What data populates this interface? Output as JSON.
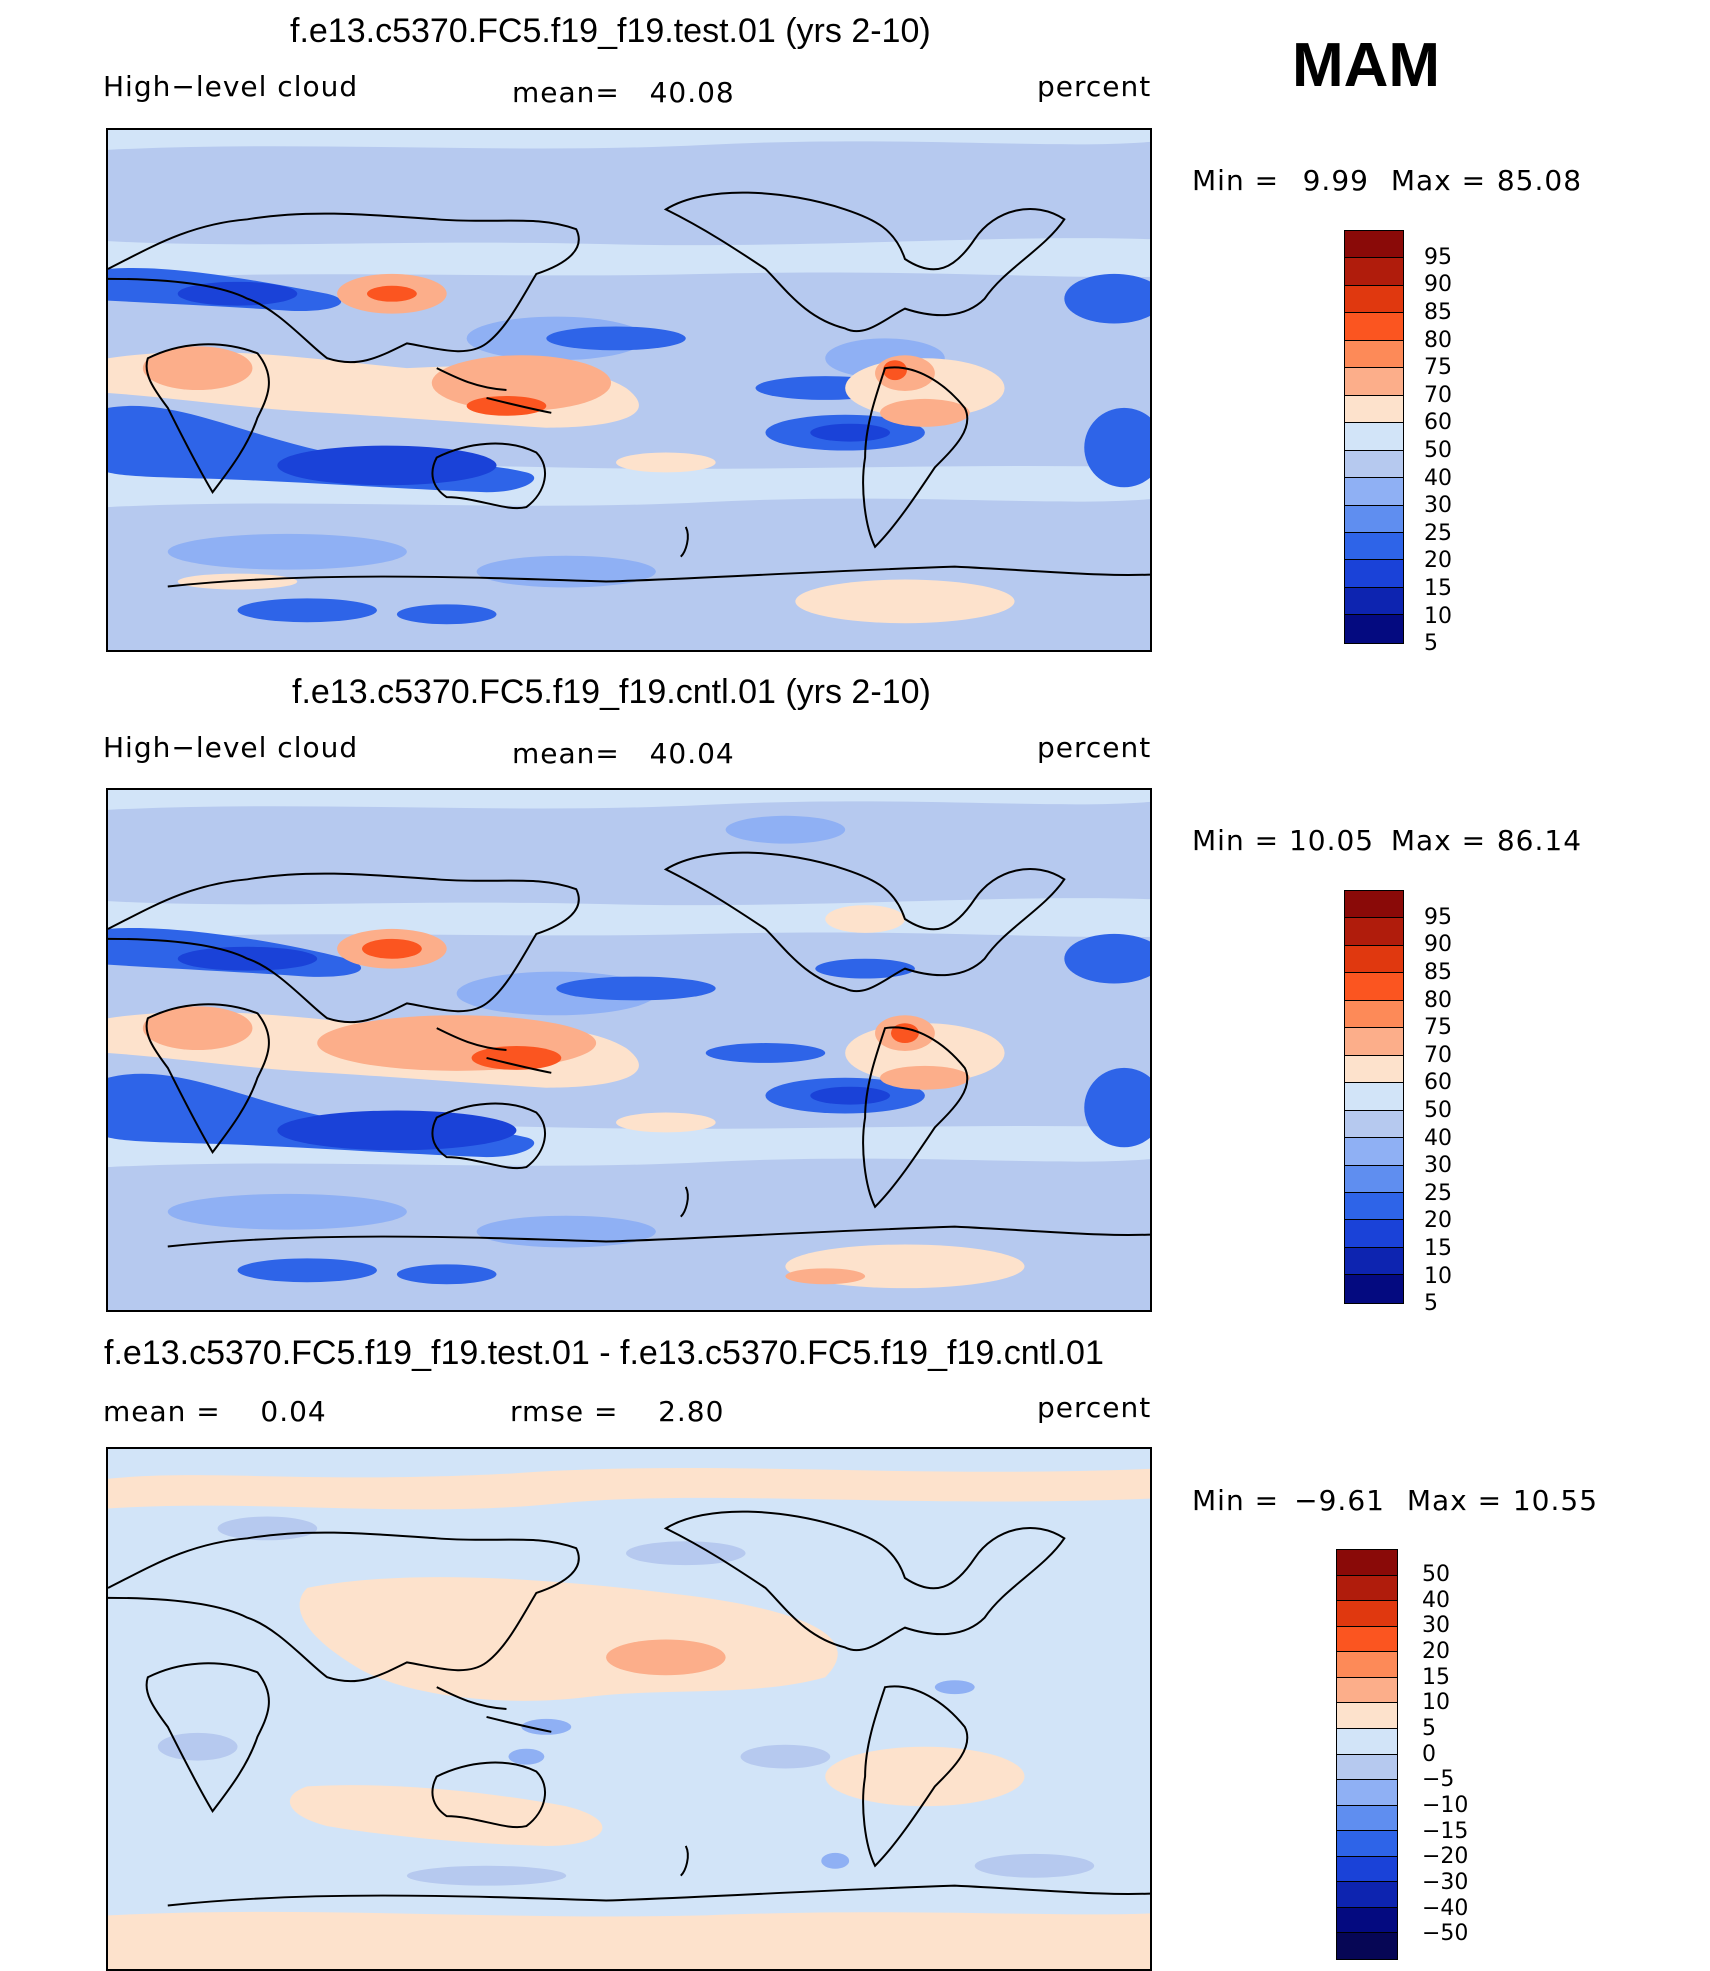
{
  "season": "MAM",
  "panels": [
    {
      "title": "f.e13.c5370.FC5.f19_f19.test.01 (yrs 2-10)",
      "left_label": "High−level cloud",
      "center_label": "mean=",
      "center_value": "40.08",
      "right_label": "percent",
      "min_label": "Min  =",
      "min_value": "9.99",
      "max_label": "Max  =",
      "max_value": "85.08",
      "colorbar_levels": [
        "95",
        "90",
        "85",
        "80",
        "75",
        "70",
        "60",
        "50",
        "40",
        "30",
        "25",
        "20",
        "15",
        "10",
        "5"
      ]
    },
    {
      "title": "f.e13.c5370.FC5.f19_f19.cntl.01 (yrs 2-10)",
      "left_label": "High−level cloud",
      "center_label": "mean=",
      "center_value": "40.04",
      "right_label": "percent",
      "min_label": "Min  =",
      "min_value": "10.05",
      "max_label": "Max  =",
      "max_value": "86.14",
      "colorbar_levels": [
        "95",
        "90",
        "85",
        "80",
        "75",
        "70",
        "60",
        "50",
        "40",
        "30",
        "25",
        "20",
        "15",
        "10",
        "5"
      ]
    },
    {
      "title": "f.e13.c5370.FC5.f19_f19.test.01 - f.e13.c5370.FC5.f19_f19.cntl.01",
      "left_label": "mean  =",
      "left_value": "0.04",
      "center_label": "rmse  =",
      "center_value": "2.80",
      "right_label": "percent",
      "min_label": "Min  =",
      "min_value": "−9.61",
      "max_label": "Max  =",
      "max_value": "10.55",
      "colorbar_levels": [
        "50",
        "40",
        "30",
        "20",
        "15",
        "10",
        "5",
        "0",
        "−5",
        "−10",
        "−15",
        "−20",
        "−30",
        "−40",
        "−50"
      ]
    }
  ],
  "palettes": {
    "absolute": [
      "#8a0a08",
      "#b01c0c",
      "#e0380f",
      "#fb5520",
      "#fd8a58",
      "#fcae8a",
      "#fde2cc",
      "#d2e4f8",
      "#b6c9ef",
      "#8fb0f4",
      "#5f8ef0",
      "#2e64e8",
      "#1a42d8",
      "#0d24b0",
      "#040a80"
    ],
    "difference": [
      "#8a0a08",
      "#b01c0c",
      "#e0380f",
      "#fb5520",
      "#fd8a58",
      "#fcae8a",
      "#fde2cc",
      "#d2e4f8",
      "#b6c9ef",
      "#8fb0f4",
      "#5f8ef0",
      "#2e64e8",
      "#1a42d8",
      "#0d24b0",
      "#040a80",
      "#060655"
    ]
  }
}
